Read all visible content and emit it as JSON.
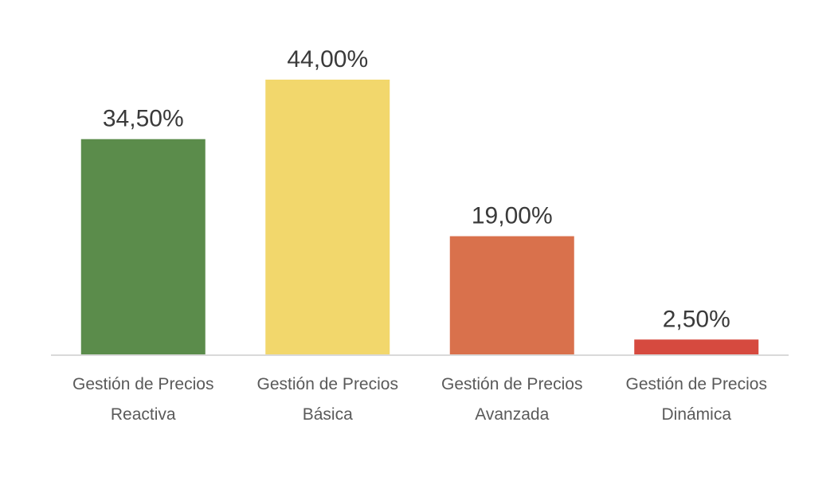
{
  "chart_data": {
    "type": "bar",
    "title": "",
    "xlabel": "",
    "ylabel": "",
    "ylim": [
      0,
      50
    ],
    "grid": false,
    "legend": "none",
    "categories": [
      [
        "Gestión de Precios",
        "Reactiva"
      ],
      [
        "Gestión de Precios",
        "Básica"
      ],
      [
        "Gestión de Precios",
        "Avanzada"
      ],
      [
        "Gestión de Precios",
        "Dinámica"
      ]
    ],
    "values": [
      34.5,
      44.0,
      19.0,
      2.5
    ],
    "value_labels": [
      "34,50%",
      "44,00%",
      "19,00%",
      "2,50%"
    ],
    "colors": [
      "#5b8c4b",
      "#f2d76c",
      "#d9714c",
      "#d64a3f"
    ],
    "axis_color": "#d9d9d9"
  }
}
